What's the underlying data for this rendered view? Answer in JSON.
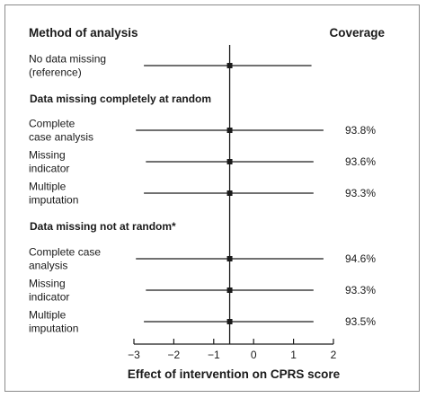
{
  "chart_data": {
    "type": "forest",
    "column_headers": {
      "left": "Method of analysis",
      "right": "Coverage"
    },
    "groups": [
      {
        "label": "",
        "rows": [
          {
            "label": [
              "No data missing",
              "(reference)"
            ],
            "estimate": -0.6,
            "ci_low": -2.75,
            "ci_high": 1.45,
            "coverage": ""
          }
        ]
      },
      {
        "label": "Data missing completely at random",
        "rows": [
          {
            "label": [
              "Complete",
              "case analysis"
            ],
            "estimate": -0.6,
            "ci_low": -2.95,
            "ci_high": 1.75,
            "coverage": "93.8%"
          },
          {
            "label": [
              "Missing",
              "indicator"
            ],
            "estimate": -0.6,
            "ci_low": -2.7,
            "ci_high": 1.5,
            "coverage": "93.6%"
          },
          {
            "label": [
              "Multiple",
              "imputation"
            ],
            "estimate": -0.6,
            "ci_low": -2.75,
            "ci_high": 1.5,
            "coverage": "93.3%"
          }
        ]
      },
      {
        "label": "Data missing not at random*",
        "rows": [
          {
            "label": [
              "Complete case",
              "analysis"
            ],
            "estimate": -0.6,
            "ci_low": -2.95,
            "ci_high": 1.75,
            "coverage": "94.6%"
          },
          {
            "label": [
              "Missing",
              "indicator"
            ],
            "estimate": -0.6,
            "ci_low": -2.7,
            "ci_high": 1.5,
            "coverage": "93.3%"
          },
          {
            "label": [
              "Multiple",
              "imputation"
            ],
            "estimate": -0.6,
            "ci_low": -2.75,
            "ci_high": 1.5,
            "coverage": "93.5%"
          }
        ]
      }
    ],
    "reference_line": -0.6,
    "xlim": [
      -3,
      2
    ],
    "xticks": [
      -3,
      -2,
      -1,
      0,
      1,
      2
    ],
    "xtick_labels": [
      "−3",
      "−2",
      "−1",
      "0",
      "1",
      "2"
    ],
    "xlabel": "Effect of intervention on CPRS score",
    "colors": {
      "ink": "#1a1a1a",
      "frame": "#8a8a8a"
    }
  }
}
